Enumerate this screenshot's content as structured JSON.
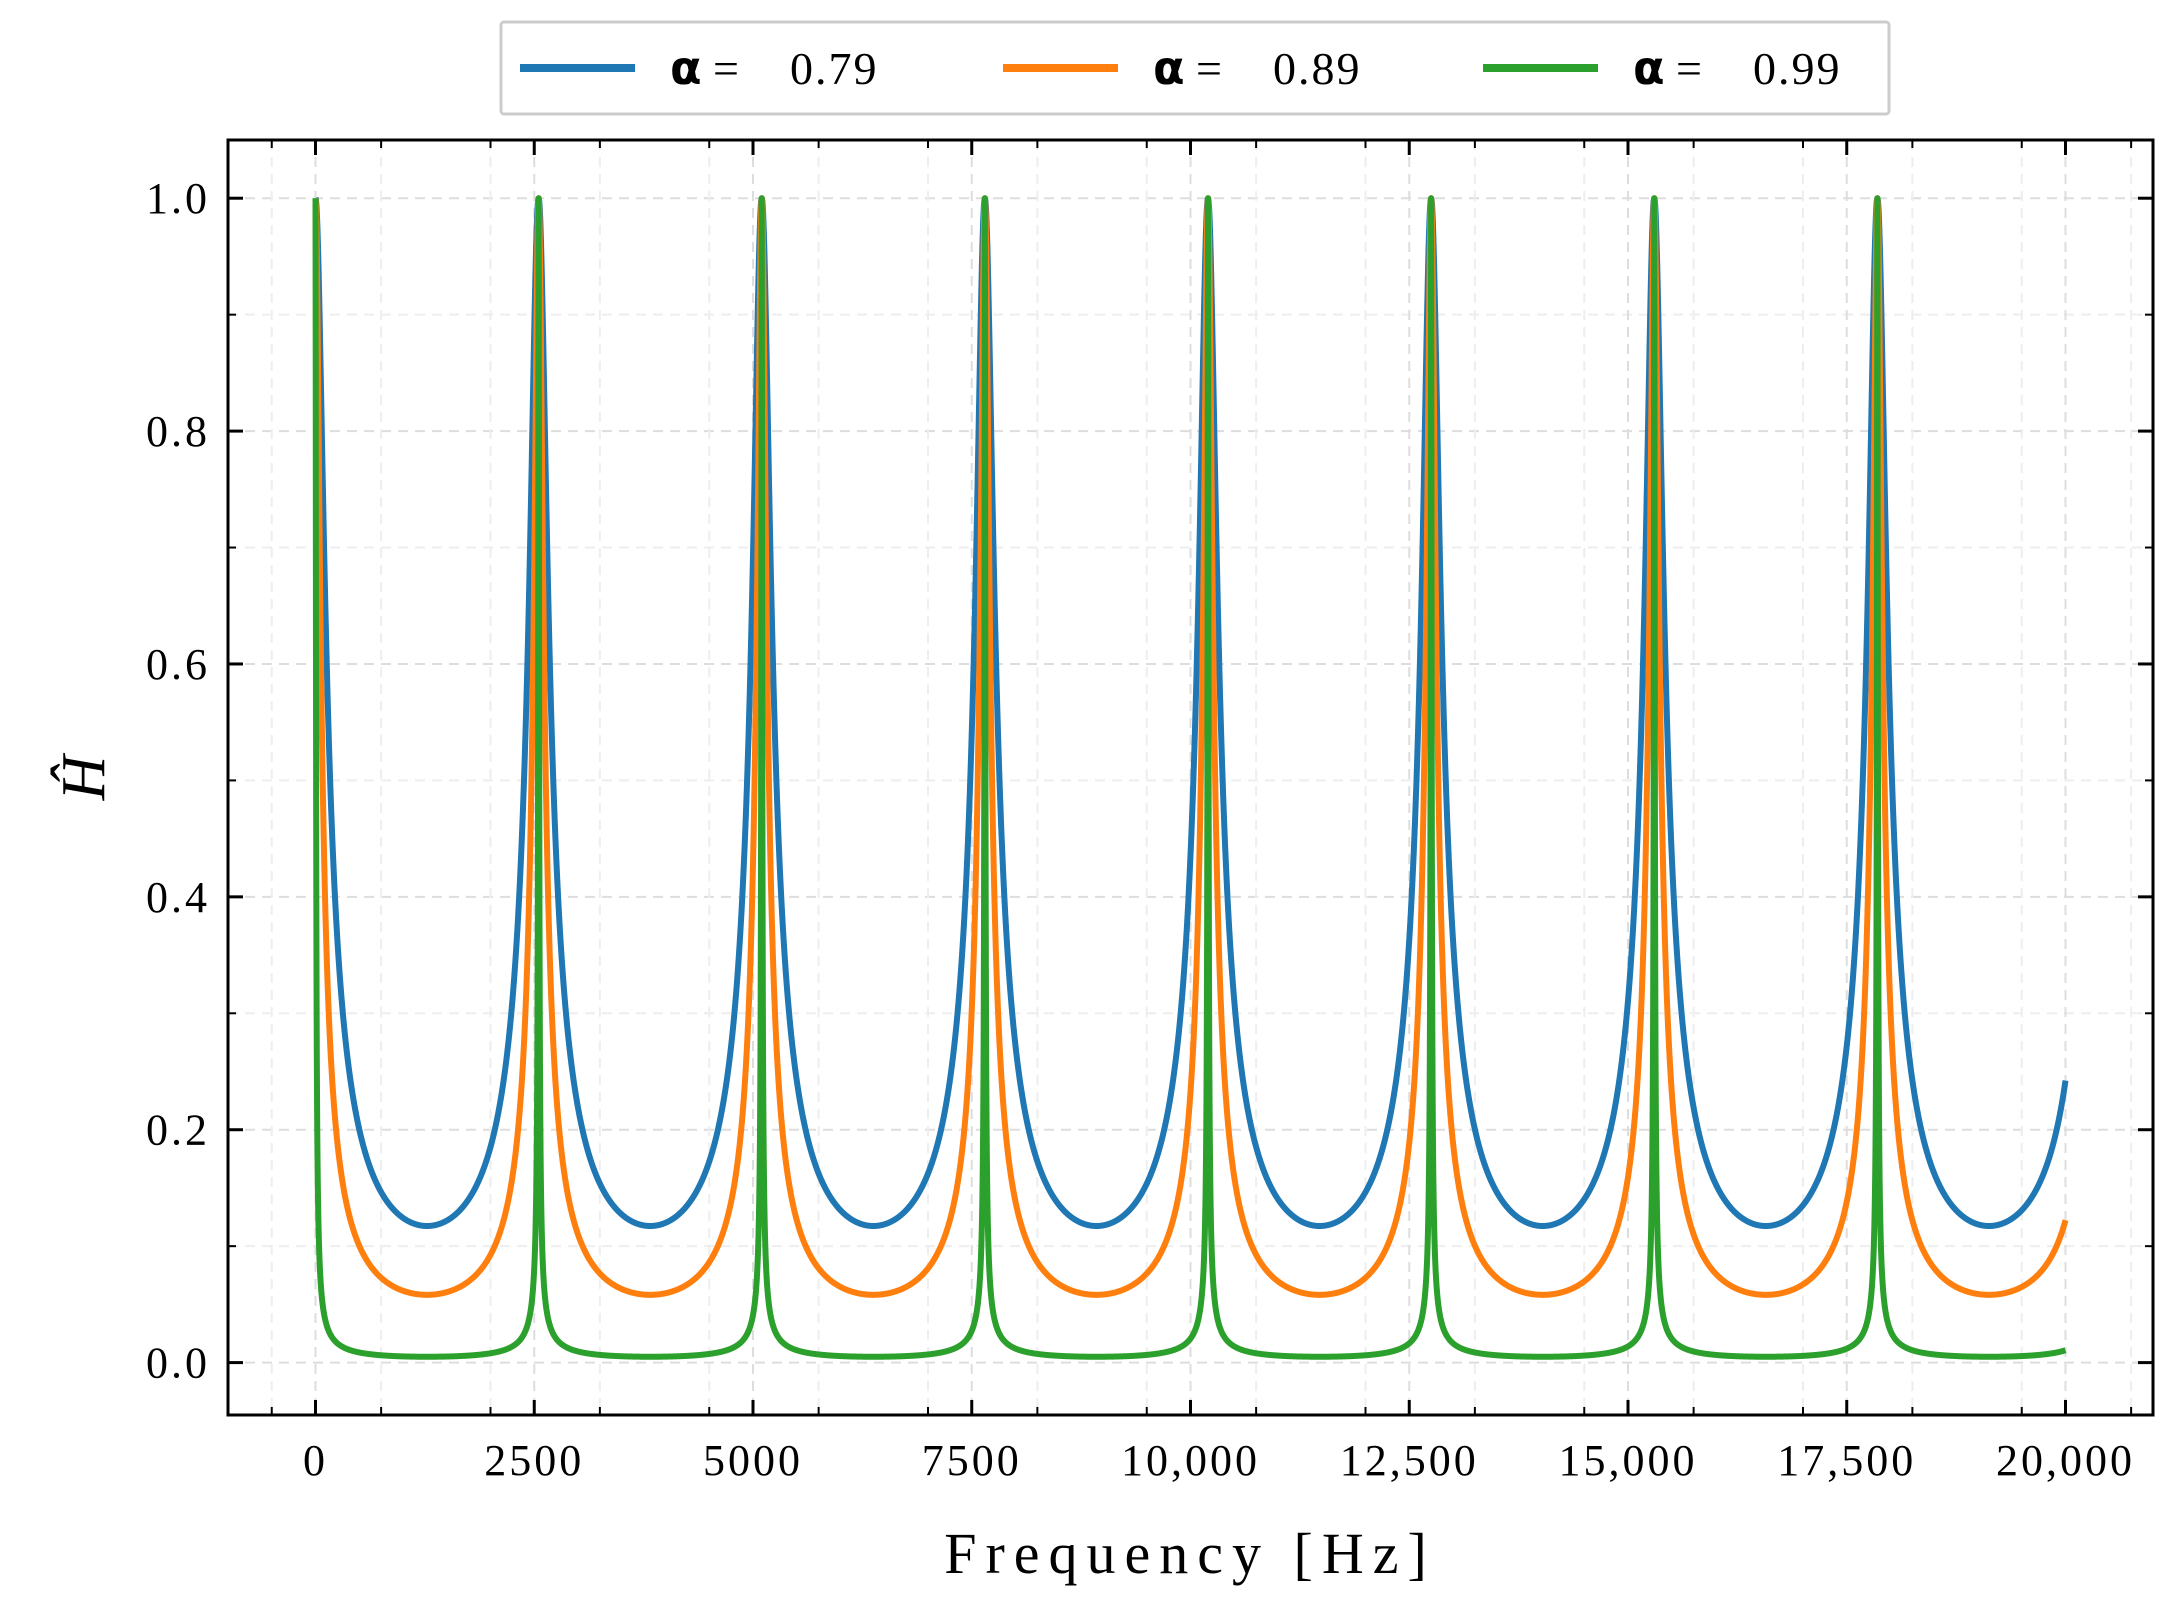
{
  "chart_data": {
    "type": "line",
    "title": "",
    "xlabel": "Frequency [Hz]",
    "ylabel": "Ĥ",
    "xlim": [
      -1000,
      21000
    ],
    "ylim": [
      -0.045,
      1.05
    ],
    "grid": true,
    "legend_position": "top-center",
    "peak_spacing_hz": 2550,
    "x_ticks": [
      {
        "value": 0,
        "label": "0"
      },
      {
        "value": 2500,
        "label": "2500"
      },
      {
        "value": 5000,
        "label": "5000"
      },
      {
        "value": 7500,
        "label": "7500"
      },
      {
        "value": 10000,
        "label": "10,000"
      },
      {
        "value": 12500,
        "label": "12,500"
      },
      {
        "value": 15000,
        "label": "15,000"
      },
      {
        "value": 17500,
        "label": "17,500"
      },
      {
        "value": 20000,
        "label": "20,000"
      }
    ],
    "y_ticks": [
      {
        "value": 0.0,
        "label": "0.0"
      },
      {
        "value": 0.2,
        "label": "0.2"
      },
      {
        "value": 0.4,
        "label": "0.4"
      },
      {
        "value": 0.6,
        "label": "0.6"
      },
      {
        "value": 0.8,
        "label": "0.8"
      },
      {
        "value": 1.0,
        "label": "1.0"
      }
    ],
    "series": [
      {
        "name": "0.79",
        "alpha": 0.79,
        "color": "#1f77b4",
        "peak_value": 1.0,
        "min_value": 0.117,
        "end_value": 0.243
      },
      {
        "name": "0.89",
        "alpha": 0.89,
        "color": "#ff7f0e",
        "peak_value": 1.0,
        "min_value": 0.058,
        "end_value": 0.124
      },
      {
        "name": "0.99",
        "alpha": 0.99,
        "color": "#2ca02c",
        "peak_value": 1.0,
        "min_value": 0.005,
        "end_value": 0.011
      }
    ],
    "legend": {
      "symbol": "α",
      "equals": "=",
      "entries": [
        "0.79",
        "0.89",
        "0.99"
      ]
    }
  }
}
